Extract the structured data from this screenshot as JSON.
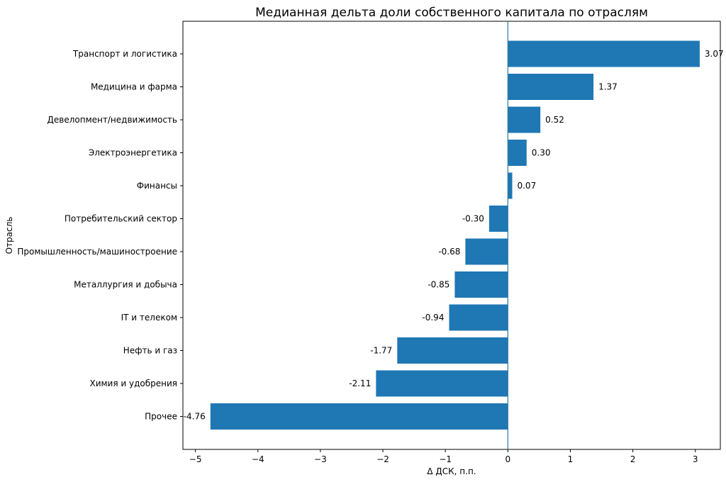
{
  "chart_data": {
    "type": "bar",
    "orientation": "horizontal",
    "title": "Медианная дельта доли собственного капитала по отраслям",
    "xlabel": "Δ ДСК, п.п.",
    "ylabel": "Отрасль",
    "xlim": [
      -5.2,
      3.4
    ],
    "x_ticks": [
      -5,
      -4,
      -3,
      -2,
      -1,
      0,
      1,
      2,
      3
    ],
    "x_tick_labels": [
      "−5",
      "−4",
      "−3",
      "−2",
      "−1",
      "0",
      "1",
      "2",
      "3"
    ],
    "grid": false,
    "bar_color": "#1f77b4",
    "zero_line_color": "#2a7a9c",
    "categories": [
      "Транспорт и логистика",
      "Медицина и фарма",
      "Девелопмент/недвижимость",
      "Электроэнергетика",
      "Финансы",
      "Потребительский сектор",
      "Промышленность/машиностроение",
      "Металлургия и добыча",
      "IT и телеком",
      "Нефть и газ",
      "Химия и удобрения",
      "Прочее"
    ],
    "values": [
      3.07,
      1.37,
      0.52,
      0.3,
      0.07,
      -0.3,
      -0.68,
      -0.85,
      -0.94,
      -1.77,
      -2.11,
      -4.76
    ],
    "value_labels": [
      "3.07",
      "1.37",
      "0.52",
      "0.30",
      "0.07",
      "-0.30",
      "-0.68",
      "-0.85",
      "-0.94",
      "-1.77",
      "-2.11",
      "-4.76"
    ]
  }
}
